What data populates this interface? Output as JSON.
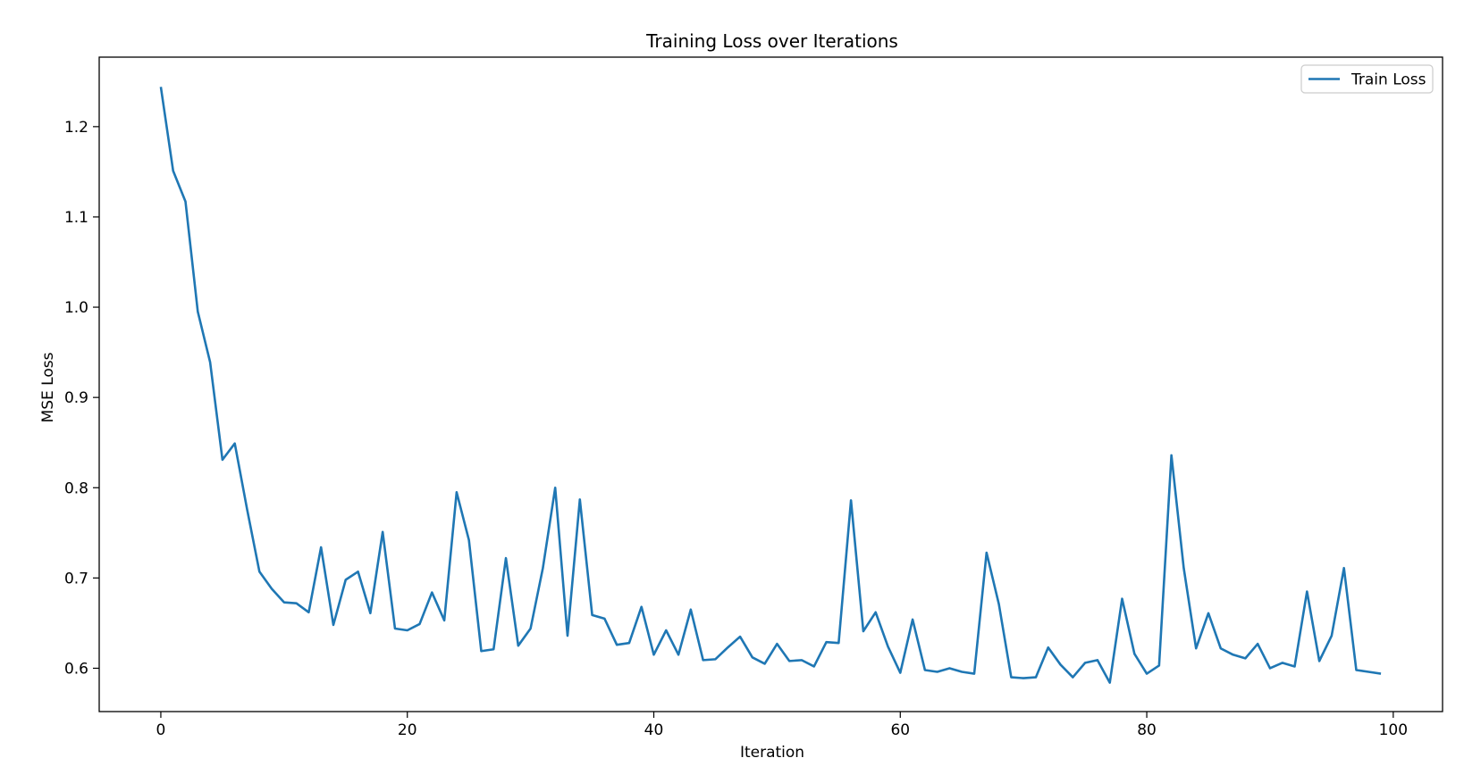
{
  "chart_data": {
    "type": "line",
    "title": "Training Loss over Iterations",
    "xlabel": "Iteration",
    "ylabel": "MSE Loss",
    "xlim": [
      -5,
      104
    ],
    "ylim": [
      0.552,
      1.277
    ],
    "x_ticks": [
      0,
      20,
      40,
      60,
      80,
      100
    ],
    "y_ticks": [
      0.6,
      0.7,
      0.8,
      0.9,
      1.0,
      1.1,
      1.2
    ],
    "y_tick_labels": [
      "0.6",
      "0.7",
      "0.8",
      "0.9",
      "1.0",
      "1.1",
      "1.2"
    ],
    "grid": false,
    "legend_position": "top-right",
    "series": [
      {
        "name": "Train Loss",
        "color": "#1f77b4",
        "x": [
          0,
          1,
          2,
          3,
          4,
          5,
          6,
          7,
          8,
          9,
          10,
          11,
          12,
          13,
          14,
          15,
          16,
          17,
          18,
          19,
          20,
          21,
          22,
          23,
          24,
          25,
          26,
          27,
          28,
          29,
          30,
          31,
          32,
          33,
          34,
          35,
          36,
          37,
          38,
          39,
          40,
          41,
          42,
          43,
          44,
          45,
          46,
          47,
          48,
          49,
          50,
          51,
          52,
          53,
          54,
          55,
          56,
          57,
          58,
          59,
          60,
          61,
          62,
          63,
          64,
          65,
          66,
          67,
          68,
          69,
          70,
          71,
          72,
          73,
          74,
          75,
          76,
          77,
          78,
          79,
          80,
          81,
          82,
          83,
          84,
          85,
          86,
          87,
          88,
          89,
          90,
          91,
          92,
          93,
          94,
          95,
          96,
          97,
          98,
          99
        ],
        "y": [
          1.244,
          1.151,
          1.117,
          0.995,
          0.939,
          0.831,
          0.849,
          0.776,
          0.707,
          0.688,
          0.673,
          0.672,
          0.662,
          0.734,
          0.648,
          0.698,
          0.707,
          0.661,
          0.751,
          0.644,
          0.642,
          0.649,
          0.684,
          0.653,
          0.795,
          0.742,
          0.619,
          0.621,
          0.722,
          0.625,
          0.644,
          0.711,
          0.8,
          0.636,
          0.787,
          0.659,
          0.655,
          0.626,
          0.628,
          0.668,
          0.615,
          0.642,
          0.615,
          0.665,
          0.609,
          0.61,
          0.623,
          0.635,
          0.612,
          0.605,
          0.627,
          0.608,
          0.609,
          0.602,
          0.629,
          0.628,
          0.786,
          0.641,
          0.662,
          0.624,
          0.595,
          0.654,
          0.598,
          0.596,
          0.6,
          0.596,
          0.594,
          0.728,
          0.671,
          0.59,
          0.589,
          0.59,
          0.623,
          0.604,
          0.59,
          0.606,
          0.609,
          0.584,
          0.677,
          0.616,
          0.594,
          0.603,
          0.836,
          0.711,
          0.622,
          0.661,
          0.622,
          0.615,
          0.611,
          0.627,
          0.6,
          0.606,
          0.602,
          0.685,
          0.608,
          0.636,
          0.711,
          0.598,
          0.596,
          0.594
        ]
      }
    ]
  }
}
